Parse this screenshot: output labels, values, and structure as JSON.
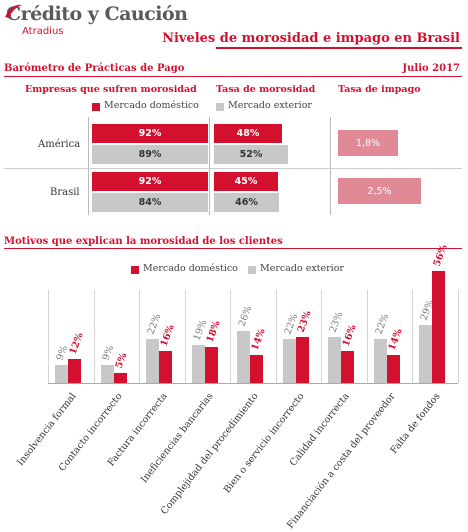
{
  "header": {
    "logo_main": "Crédito y Caución",
    "logo_sub": "Atradius",
    "title": "Niveles de morosidad e impago en Brasil"
  },
  "barometer": {
    "section_title": "Barómetro de Prácticas de Pago",
    "date": "Julio 2017",
    "col_empresas": "Empresas que sufren morosidad",
    "col_tasa": "Tasa de morosidad",
    "col_impago": "Tasa de impago",
    "legend_domestic": "Mercado doméstico",
    "legend_exterior": "Mercado exterior",
    "colors": {
      "domestic": "#d4102f",
      "exterior": "#c8c8c8",
      "impago": "#df8a94"
    }
  },
  "chart_data": [
    {
      "type": "bar",
      "orientation": "horizontal",
      "title": "Empresas que sufren morosidad",
      "categories": [
        "América",
        "Brasil"
      ],
      "series": [
        {
          "name": "Mercado doméstico",
          "values": [
            92,
            92
          ],
          "labels": [
            "92%",
            "92%"
          ]
        },
        {
          "name": "Mercado exterior",
          "values": [
            89,
            84
          ],
          "labels": [
            "89%",
            "84%"
          ]
        }
      ],
      "xlim": [
        0,
        100
      ]
    },
    {
      "type": "bar",
      "orientation": "horizontal",
      "title": "Tasa de morosidad",
      "categories": [
        "América",
        "Brasil"
      ],
      "series": [
        {
          "name": "Mercado doméstico",
          "values": [
            48,
            45
          ],
          "labels": [
            "48%",
            "45%"
          ]
        },
        {
          "name": "Mercado exterior",
          "values": [
            52,
            46
          ],
          "labels": [
            "52%",
            "46%"
          ]
        }
      ],
      "xlim": [
        0,
        100
      ]
    },
    {
      "type": "bar",
      "orientation": "horizontal",
      "title": "Tasa de impago",
      "categories": [
        "América",
        "Brasil"
      ],
      "values": [
        1.8,
        2.5
      ],
      "labels": [
        "1,8%",
        "2,5%"
      ]
    },
    {
      "type": "bar",
      "title": "Motivos que explican la morosidad de los clientes",
      "categories": [
        "Insolvencia formal",
        "Contacto incorrecto",
        "Factura incorrecta",
        "Ineficiencias bancarias",
        "Complejidad del procedimiento",
        "Bien o servicio incorrecto",
        "Calidad incorrecta",
        "Financiación a costa del proveedor",
        "Falta de fondos"
      ],
      "series": [
        {
          "name": "Mercado exterior",
          "values": [
            9,
            9,
            22,
            19,
            26,
            22,
            23,
            22,
            29
          ],
          "labels": [
            "9%",
            "9%",
            "22%",
            "19%",
            "26%",
            "22%",
            "23%",
            "22%",
            "29%"
          ]
        },
        {
          "name": "Mercado doméstico",
          "values": [
            12,
            5,
            16,
            18,
            14,
            23,
            16,
            14,
            56
          ],
          "labels": [
            "12%",
            "5%",
            "16%",
            "18%",
            "14%",
            "23%",
            "16%",
            "14%",
            "56%"
          ]
        }
      ],
      "ylim": [
        0,
        60
      ],
      "legend": [
        "Mercado doméstico",
        "Mercado exterior"
      ]
    }
  ],
  "motivos": {
    "section_title": "Motivos que explican la morosidad de los clientes",
    "legend_domestic": "Mercado doméstico",
    "legend_exterior": "Mercado exterior"
  }
}
